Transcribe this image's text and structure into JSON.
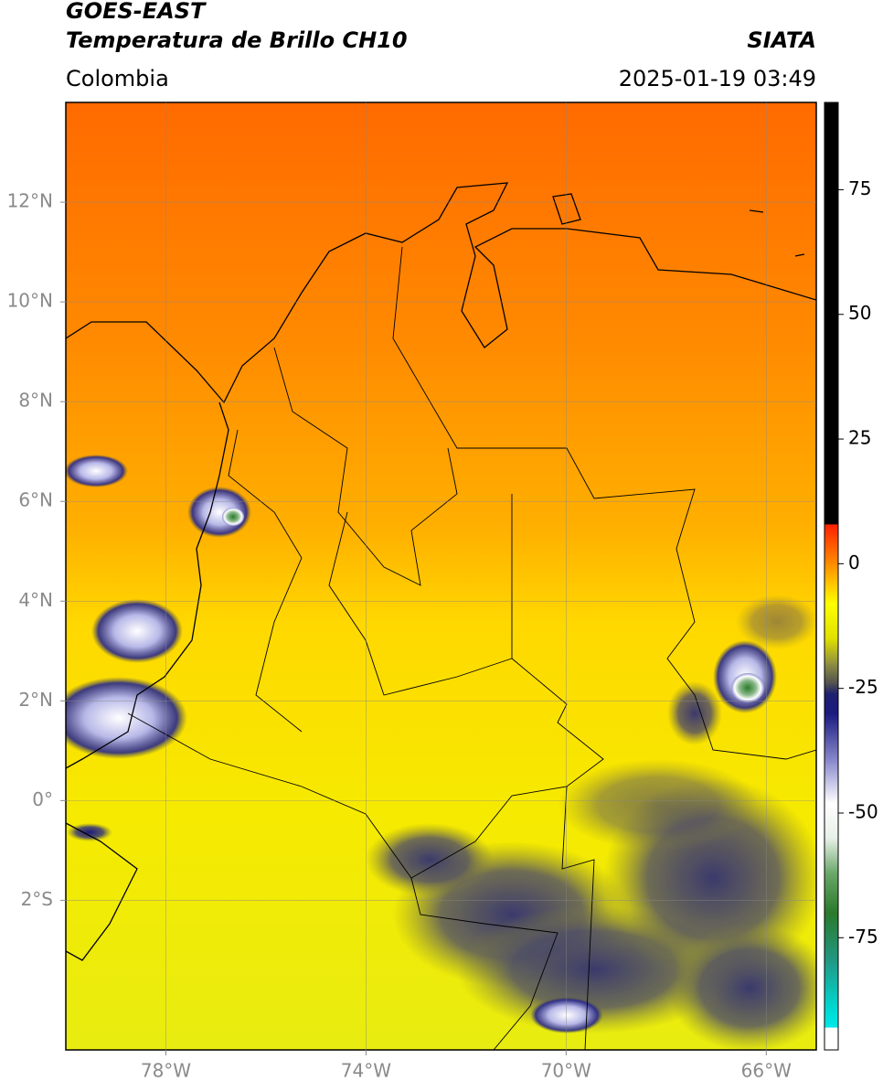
{
  "header": {
    "title": "GOES-EAST",
    "subtitle": "Temperatura de Brillo CH10",
    "source": "SIATA",
    "region": "Colombia",
    "timestamp": "2025-01-19 03:49"
  },
  "map": {
    "xlim": [
      -80,
      -65
    ],
    "ylim": [
      -5,
      14
    ],
    "grid": true,
    "xticks": [
      {
        "value": -78,
        "label": "78°W"
      },
      {
        "value": -74,
        "label": "74°W"
      },
      {
        "value": -70,
        "label": "70°W"
      },
      {
        "value": -66,
        "label": "66°W"
      }
    ],
    "yticks": [
      {
        "value": 12,
        "label": "12°N"
      },
      {
        "value": 10,
        "label": "10°N"
      },
      {
        "value": 8,
        "label": "8°N"
      },
      {
        "value": 6,
        "label": "6°N"
      },
      {
        "value": 4,
        "label": "4°N"
      },
      {
        "value": 2,
        "label": "2°N"
      },
      {
        "value": 0,
        "label": "0°"
      },
      {
        "value": -2,
        "label": "2°S"
      }
    ]
  },
  "colorbar": {
    "lim": [
      -97.5,
      92.5
    ],
    "ticks": [
      75,
      50,
      25,
      0,
      -25,
      -50,
      -75
    ],
    "stops": [
      {
        "value": -97.5,
        "color": "#ffffff"
      },
      {
        "value": -93,
        "color": "#ffffff"
      },
      {
        "value": -92.9,
        "color": "#00e8e8"
      },
      {
        "value": -89,
        "color": "#00d8d0"
      },
      {
        "value": -80,
        "color": "#209a88"
      },
      {
        "value": -70,
        "color": "#2a7a2a"
      },
      {
        "value": -62,
        "color": "#6aa86a"
      },
      {
        "value": -55,
        "color": "#e8f0e8"
      },
      {
        "value": -48,
        "color": "#ffffff"
      },
      {
        "value": -40,
        "color": "#9090d0"
      },
      {
        "value": -30,
        "color": "#1a1a80"
      },
      {
        "value": -26,
        "color": "#202070"
      },
      {
        "value": -24,
        "color": "#505050"
      },
      {
        "value": -20,
        "color": "#909040"
      },
      {
        "value": -15,
        "color": "#e0e000"
      },
      {
        "value": -8,
        "color": "#ffff00"
      },
      {
        "value": 0,
        "color": "#ff8c00"
      },
      {
        "value": 7.9,
        "color": "#ff2000"
      },
      {
        "value": 8,
        "color": "#000000"
      },
      {
        "value": 92.5,
        "color": "#000000"
      }
    ]
  }
}
